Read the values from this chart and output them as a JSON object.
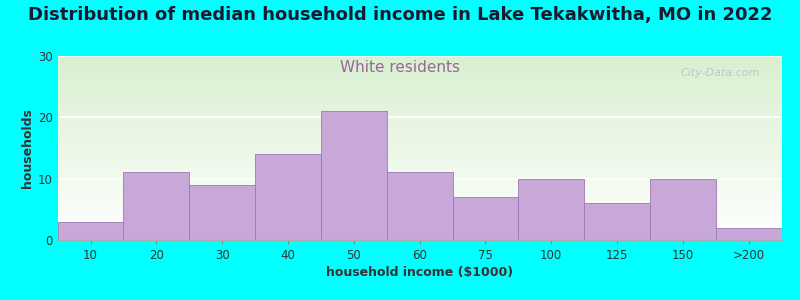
{
  "title": "Distribution of median household income in Lake Tekakwitha, MO in 2022",
  "subtitle": "White residents",
  "xlabel": "household income ($1000)",
  "ylabel": "households",
  "background_color": "#00FFFF",
  "plot_bg_top": "#d8f0d0",
  "plot_bg_bottom": "#ffffff",
  "bar_color": "#C8A8D8",
  "bar_edge_color": "#9B79B0",
  "categories": [
    "10",
    "20",
    "30",
    "40",
    "50",
    "60",
    "75",
    "100",
    "125",
    "150",
    ">200"
  ],
  "values": [
    3,
    11,
    9,
    14,
    21,
    11,
    7,
    10,
    6,
    10,
    2
  ],
  "ylim": [
    0,
    30
  ],
  "yticks": [
    0,
    10,
    20,
    30
  ],
  "title_fontsize": 13,
  "title_color": "#1a1a2e",
  "subtitle_fontsize": 11,
  "subtitle_color": "#996699",
  "axis_label_fontsize": 9,
  "axis_label_color": "#333333",
  "tick_fontsize": 8.5,
  "tick_color": "#333333",
  "watermark": "City-Data.com",
  "grid_color": "#ffffff",
  "spine_color": "#aaaaaa"
}
